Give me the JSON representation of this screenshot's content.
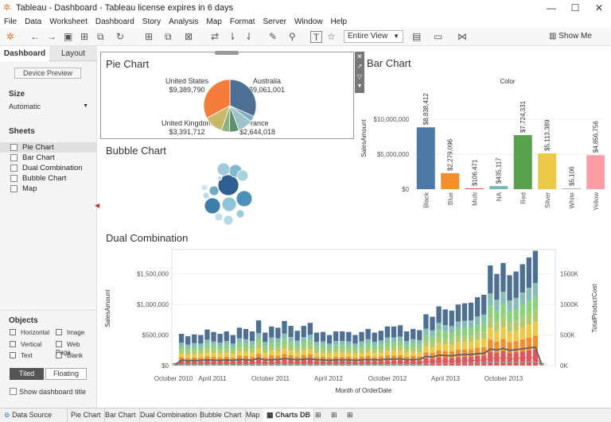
{
  "window": {
    "title": "Tableau - Dashboard - Tableau license expires in 6 days",
    "minimize": "—",
    "maximize": "☐",
    "close": "✕"
  },
  "menu": [
    "File",
    "Data",
    "Worksheet",
    "Dashboard",
    "Story",
    "Analysis",
    "Map",
    "Format",
    "Server",
    "Window",
    "Help"
  ],
  "toolbar": {
    "fit_select": "Entire View",
    "show_me": "Show Me"
  },
  "left_pane": {
    "tabs": [
      "Dashboard",
      "Layout"
    ],
    "device_preview": "Device Preview",
    "size_heading": "Size",
    "size_value": "Automatic",
    "sheets_heading": "Sheets",
    "sheets": [
      "Pie Chart",
      "Bar Chart",
      "Dual Combination",
      "Bubble Chart",
      "Map"
    ],
    "objects_heading": "Objects",
    "objects": [
      "Horizontal",
      "Image",
      "Vertical",
      "Web Page",
      "Text",
      "Blank"
    ],
    "tiled": "Tiled",
    "floating": "Floating",
    "show_title": "Show dashboard title"
  },
  "bottom_tabs": [
    "Data Source",
    "Pie Chart",
    "Bar Chart",
    "Dual Combination",
    "Bubble Chart",
    "Map",
    "Charts DB"
  ],
  "chart_data": [
    {
      "type": "pie",
      "title": "Pie Chart",
      "labels": [
        {
          "country": "Australia",
          "value": "$9,061,001"
        },
        {
          "country": "France",
          "value": "$2,644,018"
        },
        {
          "country": "United Kingdom",
          "value": "$3,391,712"
        },
        {
          "country": "United States",
          "value": "$9,389,790"
        }
      ],
      "slices": [
        {
          "name": "Australia",
          "value": 9061001,
          "color": "#4e6f94"
        },
        {
          "name": "slice-b",
          "value": 1000000,
          "color": "#7ea8be"
        },
        {
          "name": "France",
          "value": 2644018,
          "color": "#9bc3c9"
        },
        {
          "name": "slice-d",
          "value": 1700000,
          "color": "#5f8f6e"
        },
        {
          "name": "slice-e",
          "value": 1400000,
          "color": "#8cb07e"
        },
        {
          "name": "United Kingdom",
          "value": 3391712,
          "color": "#c8b86a"
        },
        {
          "name": "United States",
          "value": 9389790,
          "color": "#f47d3c"
        }
      ]
    },
    {
      "type": "bar",
      "title": "Bar Chart",
      "legend_title": "Color",
      "ylabel": "SalesAmount",
      "yticks": [
        "$10,000,000",
        "$5,000,000",
        "$0"
      ],
      "categories": [
        "Black",
        "Blue",
        "Multi",
        "NA",
        "Red",
        "Silver",
        "White",
        "Yellow"
      ],
      "values": [
        8838412,
        2279096,
        106471,
        435117,
        7724331,
        5113389,
        5106,
        4856756
      ],
      "value_labels": [
        "$8,838,412",
        "$2,279,096",
        "$106,471",
        "$435,117",
        "$7,724,331",
        "$5,113,389",
        "$5,106",
        "$4,856,756"
      ],
      "colors": [
        "#4e79a7",
        "#f28e2b",
        "#e15759",
        "#76b7b2",
        "#59a14f",
        "#edc948",
        "#bab0ac",
        "#ff9da7"
      ],
      "ylim": [
        0,
        10000000
      ]
    },
    {
      "type": "scatter",
      "title": "Bubble Chart",
      "bubbles": [
        {
          "r": 13,
          "color": "#2e5f8f"
        },
        {
          "r": 10,
          "color": "#4a90b8"
        },
        {
          "r": 10,
          "color": "#3d7fa8"
        },
        {
          "r": 9,
          "color": "#8ec4d6"
        },
        {
          "r": 8,
          "color": "#7fb8cf"
        },
        {
          "r": 8,
          "color": "#9fcbdc"
        },
        {
          "r": 7,
          "color": "#a9d2e0"
        },
        {
          "r": 6,
          "color": "#b4d8e4"
        },
        {
          "r": 6,
          "color": "#6fa9c6"
        },
        {
          "r": 5,
          "color": "#c2dfe9"
        },
        {
          "r": 5,
          "color": "#9ccbdb"
        },
        {
          "r": 4,
          "color": "#b8dae6"
        },
        {
          "r": 4,
          "color": "#d0e6ee"
        },
        {
          "r": 3,
          "color": "#c7e1ea"
        }
      ]
    },
    {
      "type": "bar",
      "title": "Dual Combination",
      "xlabel": "Month of OrderDate",
      "ylabel": "SalesAmount",
      "y2label": "TotalProductCost",
      "yticks": [
        "$1,500,000",
        "$1,000,000",
        "$500,000",
        "$0"
      ],
      "y2ticks": [
        "1500K",
        "1000K",
        "500K",
        "0K"
      ],
      "xticks": [
        "October 2010",
        "April 2011",
        "October 2011",
        "April 2012",
        "October 2012",
        "April 2013",
        "October 2013"
      ],
      "ylim": [
        0,
        1900000
      ],
      "segment_colors": [
        "#e15759",
        "#f28e2b",
        "#edc948",
        "#b3c96f",
        "#8cd17d",
        "#86bcb6",
        "#4e6f94"
      ],
      "totals": [
        40000,
        520000,
        480000,
        510000,
        500000,
        590000,
        550000,
        520000,
        560000,
        500000,
        620000,
        600000,
        560000,
        740000,
        540000,
        640000,
        620000,
        730000,
        650000,
        570000,
        650000,
        700000,
        540000,
        550000,
        500000,
        560000,
        560000,
        550000,
        500000,
        550000,
        600000,
        540000,
        570000,
        640000,
        640000,
        660000,
        560000,
        600000,
        580000,
        840000,
        800000,
        970000,
        920000,
        900000,
        1000000,
        1020000,
        1030000,
        1120000,
        1160000,
        1640000,
        1500000,
        1680000,
        1480000,
        1540000,
        1660000,
        1770000,
        1880000,
        40000
      ],
      "line": [
        10000,
        90000,
        80000,
        85000,
        85000,
        95000,
        90000,
        85000,
        95000,
        85000,
        100000,
        95000,
        90000,
        120000,
        90000,
        100000,
        100000,
        115000,
        105000,
        95000,
        105000,
        110000,
        95000,
        95000,
        85000,
        95000,
        95000,
        95000,
        85000,
        95000,
        100000,
        95000,
        95000,
        105000,
        105000,
        110000,
        95000,
        100000,
        100000,
        150000,
        140000,
        170000,
        165000,
        160000,
        175000,
        180000,
        180000,
        195000,
        200000,
        270000,
        255000,
        280000,
        250000,
        260000,
        275000,
        290000,
        300000,
        10000
      ]
    }
  ]
}
